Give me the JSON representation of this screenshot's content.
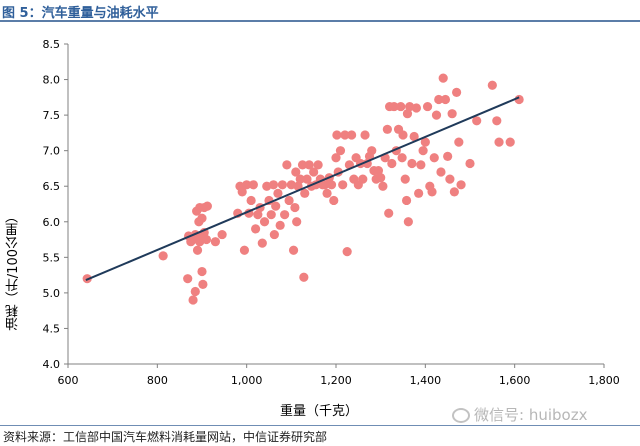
{
  "figure": {
    "title": "图 5：汽车重量与油耗水平",
    "source": "资料来源：工信部中国汽车燃料消耗量网站，中信证券研究部",
    "watermark": "微信号: huibozx"
  },
  "colors": {
    "points": "#ef8080",
    "trendline": "#1f3a5a",
    "title": "#2f5f9a",
    "axis": "#808080"
  },
  "chart_data": {
    "type": "scatter",
    "title": "",
    "xlabel": "重量（千克）",
    "ylabel": "油耗（升/100公里）",
    "xlim": [
      600,
      1800
    ],
    "ylim": [
      4.0,
      8.5
    ],
    "xticks": [
      600,
      800,
      1000,
      1200,
      1400,
      1600,
      1800
    ],
    "xtick_labels": [
      "600",
      "800",
      "1,000",
      "1,200",
      "1,400",
      "1,600",
      "1,800"
    ],
    "yticks": [
      4.0,
      4.5,
      5.0,
      5.5,
      6.0,
      6.5,
      7.0,
      7.5,
      8.0,
      8.5
    ],
    "ytick_labels": [
      "4.0",
      "4.5",
      "5.0",
      "5.5",
      "6.0",
      "6.5",
      "7.0",
      "7.5",
      "8.0",
      "8.5"
    ],
    "grid": false,
    "trendline": {
      "x": [
        640,
        1610
      ],
      "y": [
        5.18,
        7.75
      ]
    },
    "points": [
      [
        643,
        5.2
      ],
      [
        813,
        5.52
      ],
      [
        868,
        5.2
      ],
      [
        880,
        4.9
      ],
      [
        885,
        5.02
      ],
      [
        900,
        5.3
      ],
      [
        902,
        5.12
      ],
      [
        870,
        5.8
      ],
      [
        875,
        5.72
      ],
      [
        880,
        5.75
      ],
      [
        885,
        5.82
      ],
      [
        890,
        5.6
      ],
      [
        895,
        5.72
      ],
      [
        898,
        5.8
      ],
      [
        905,
        5.85
      ],
      [
        910,
        5.75
      ],
      [
        930,
        5.72
      ],
      [
        945,
        5.82
      ],
      [
        888,
        6.15
      ],
      [
        895,
        6.2
      ],
      [
        905,
        6.2
      ],
      [
        912,
        6.22
      ],
      [
        893,
        6.0
      ],
      [
        900,
        6.05
      ],
      [
        980,
        6.12
      ],
      [
        985,
        6.5
      ],
      [
        990,
        6.42
      ],
      [
        995,
        5.6
      ],
      [
        1000,
        6.52
      ],
      [
        1005,
        6.12
      ],
      [
        1010,
        6.3
      ],
      [
        1015,
        6.52
      ],
      [
        1020,
        5.9
      ],
      [
        1025,
        6.1
      ],
      [
        1030,
        6.2
      ],
      [
        1035,
        5.7
      ],
      [
        1040,
        6.0
      ],
      [
        1045,
        6.5
      ],
      [
        1050,
        6.3
      ],
      [
        1055,
        6.1
      ],
      [
        1060,
        6.52
      ],
      [
        1062,
        5.82
      ],
      [
        1065,
        6.22
      ],
      [
        1070,
        6.4
      ],
      [
        1075,
        5.95
      ],
      [
        1080,
        6.52
      ],
      [
        1085,
        6.1
      ],
      [
        1090,
        6.8
      ],
      [
        1095,
        6.3
      ],
      [
        1100,
        6.52
      ],
      [
        1105,
        5.6
      ],
      [
        1108,
        6.2
      ],
      [
        1110,
        6.7
      ],
      [
        1112,
        6.0
      ],
      [
        1115,
        6.5
      ],
      [
        1120,
        6.6
      ],
      [
        1125,
        6.8
      ],
      [
        1128,
        5.22
      ],
      [
        1130,
        6.4
      ],
      [
        1135,
        6.6
      ],
      [
        1140,
        6.8
      ],
      [
        1145,
        6.5
      ],
      [
        1150,
        6.7
      ],
      [
        1155,
        6.52
      ],
      [
        1160,
        6.8
      ],
      [
        1165,
        6.6
      ],
      [
        1170,
        6.52
      ],
      [
        1175,
        6.52
      ],
      [
        1180,
        6.4
      ],
      [
        1185,
        6.62
      ],
      [
        1190,
        6.52
      ],
      [
        1195,
        6.3
      ],
      [
        1200,
        6.9
      ],
      [
        1202,
        7.22
      ],
      [
        1205,
        6.7
      ],
      [
        1210,
        7.0
      ],
      [
        1215,
        6.52
      ],
      [
        1220,
        7.22
      ],
      [
        1225,
        5.58
      ],
      [
        1230,
        6.8
      ],
      [
        1235,
        7.22
      ],
      [
        1240,
        6.6
      ],
      [
        1245,
        6.9
      ],
      [
        1250,
        6.52
      ],
      [
        1255,
        6.82
      ],
      [
        1260,
        6.6
      ],
      [
        1265,
        7.22
      ],
      [
        1270,
        6.82
      ],
      [
        1275,
        6.92
      ],
      [
        1280,
        7.0
      ],
      [
        1285,
        6.72
      ],
      [
        1290,
        6.6
      ],
      [
        1295,
        6.72
      ],
      [
        1300,
        6.62
      ],
      [
        1305,
        6.5
      ],
      [
        1310,
        6.9
      ],
      [
        1315,
        7.3
      ],
      [
        1318,
        6.12
      ],
      [
        1320,
        7.62
      ],
      [
        1325,
        6.82
      ],
      [
        1330,
        7.62
      ],
      [
        1335,
        7.0
      ],
      [
        1340,
        7.3
      ],
      [
        1345,
        7.62
      ],
      [
        1348,
        6.9
      ],
      [
        1350,
        7.22
      ],
      [
        1355,
        6.6
      ],
      [
        1358,
        6.3
      ],
      [
        1360,
        7.52
      ],
      [
        1362,
        6.0
      ],
      [
        1365,
        7.62
      ],
      [
        1370,
        6.82
      ],
      [
        1375,
        7.2
      ],
      [
        1380,
        7.6
      ],
      [
        1385,
        6.4
      ],
      [
        1390,
        6.8
      ],
      [
        1395,
        7.0
      ],
      [
        1400,
        7.12
      ],
      [
        1405,
        7.62
      ],
      [
        1410,
        6.5
      ],
      [
        1415,
        6.42
      ],
      [
        1420,
        6.9
      ],
      [
        1425,
        7.5
      ],
      [
        1430,
        7.72
      ],
      [
        1435,
        6.7
      ],
      [
        1440,
        8.02
      ],
      [
        1445,
        7.72
      ],
      [
        1450,
        6.92
      ],
      [
        1455,
        6.6
      ],
      [
        1460,
        7.52
      ],
      [
        1465,
        6.42
      ],
      [
        1470,
        7.82
      ],
      [
        1475,
        7.12
      ],
      [
        1480,
        6.52
      ],
      [
        1500,
        6.82
      ],
      [
        1515,
        7.42
      ],
      [
        1550,
        7.92
      ],
      [
        1560,
        7.42
      ],
      [
        1565,
        7.12
      ],
      [
        1590,
        7.12
      ],
      [
        1610,
        7.72
      ]
    ]
  }
}
